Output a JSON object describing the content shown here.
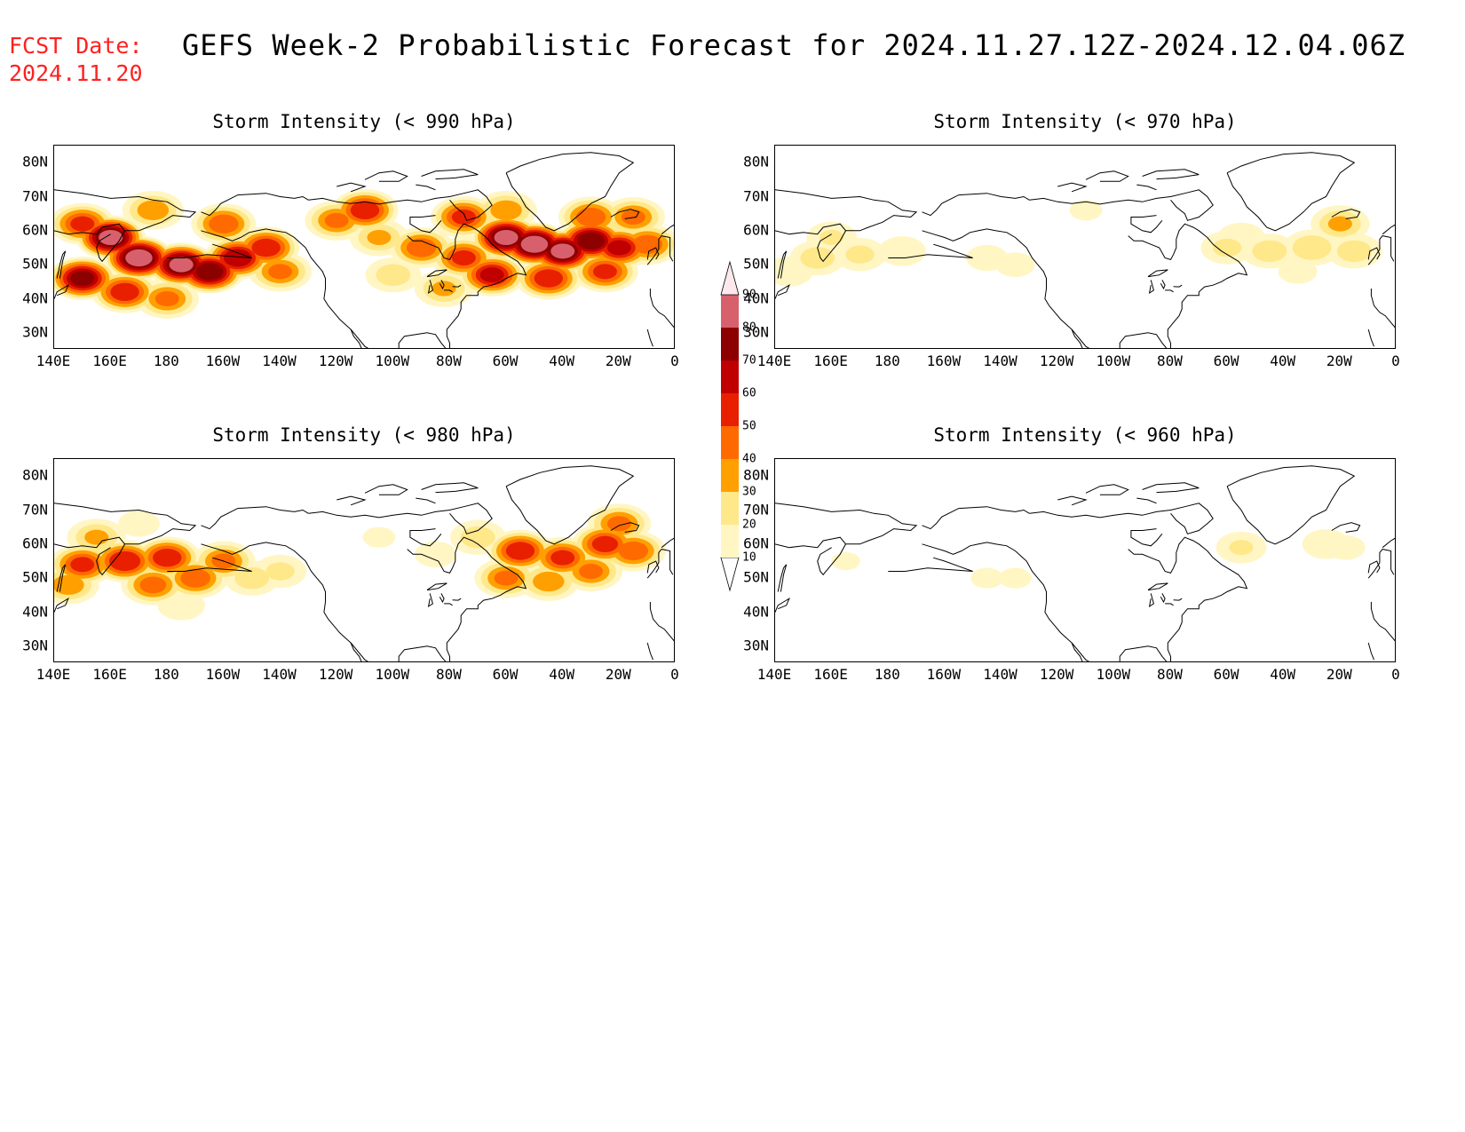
{
  "header": {
    "fcst_label": "FCST Date:",
    "fcst_date": "2024.11.20",
    "title": "GEFS Week-2 Probabilistic Forecast for 2024.11.27.12Z-2024.12.04.06Z"
  },
  "axes": {
    "x_ticks": [
      "140E",
      "160E",
      "180",
      "160W",
      "140W",
      "120W",
      "100W",
      "80W",
      "60W",
      "40W",
      "20W",
      "0"
    ],
    "y_ticks": [
      "80N",
      "70N",
      "60N",
      "50N",
      "40N",
      "30N"
    ],
    "lon_range_deg_east": [
      140,
      360
    ],
    "lat_range": [
      25,
      85
    ]
  },
  "colorbar": {
    "levels": [
      10,
      20,
      30,
      40,
      50,
      60,
      70,
      80,
      90
    ],
    "colors": [
      "#fff6c4",
      "#ffe88a",
      "#ffa000",
      "#ff6a00",
      "#e82000",
      "#c00000",
      "#8c0000",
      "#d8606c",
      "#f2b0b8",
      "#ffe8ec"
    ],
    "colors_note_index": "below 10 is white"
  },
  "chart_data": [
    {
      "type": "heatmap",
      "title": "Storm Intensity (< 990 hPa)",
      "blobs": [
        {
          "lon": 170,
          "lat": 52,
          "p": 85
        },
        {
          "lon": 160,
          "lat": 58,
          "p": 80
        },
        {
          "lon": 185,
          "lat": 50,
          "p": 80
        },
        {
          "lon": 195,
          "lat": 48,
          "p": 75
        },
        {
          "lon": 150,
          "lat": 46,
          "p": 70
        },
        {
          "lon": 205,
          "lat": 52,
          "p": 65
        },
        {
          "lon": 215,
          "lat": 55,
          "p": 55
        },
        {
          "lon": 165,
          "lat": 42,
          "p": 55
        },
        {
          "lon": 180,
          "lat": 40,
          "p": 40
        },
        {
          "lon": 150,
          "lat": 62,
          "p": 50
        },
        {
          "lon": 200,
          "lat": 62,
          "p": 45
        },
        {
          "lon": 175,
          "lat": 66,
          "p": 35
        },
        {
          "lon": 220,
          "lat": 48,
          "p": 40
        },
        {
          "lon": 240,
          "lat": 63,
          "p": 40
        },
        {
          "lon": 250,
          "lat": 66,
          "p": 55
        },
        {
          "lon": 255,
          "lat": 58,
          "p": 30
        },
        {
          "lon": 270,
          "lat": 55,
          "p": 45
        },
        {
          "lon": 285,
          "lat": 52,
          "p": 50
        },
        {
          "lon": 300,
          "lat": 58,
          "p": 80
        },
        {
          "lon": 310,
          "lat": 56,
          "p": 85
        },
        {
          "lon": 320,
          "lat": 54,
          "p": 80
        },
        {
          "lon": 330,
          "lat": 57,
          "p": 75
        },
        {
          "lon": 340,
          "lat": 55,
          "p": 60
        },
        {
          "lon": 295,
          "lat": 47,
          "p": 60
        },
        {
          "lon": 315,
          "lat": 46,
          "p": 55
        },
        {
          "lon": 335,
          "lat": 48,
          "p": 50
        },
        {
          "lon": 350,
          "lat": 56,
          "p": 45
        },
        {
          "lon": 285,
          "lat": 64,
          "p": 50
        },
        {
          "lon": 300,
          "lat": 66,
          "p": 35
        },
        {
          "lon": 330,
          "lat": 64,
          "p": 45
        },
        {
          "lon": 345,
          "lat": 64,
          "p": 40
        },
        {
          "lon": 278,
          "lat": 43,
          "p": 30
        },
        {
          "lon": 260,
          "lat": 47,
          "p": 25
        }
      ]
    },
    {
      "type": "heatmap",
      "title": "Storm Intensity (< 970 hPa)",
      "blobs": [
        {
          "lon": 155,
          "lat": 52,
          "p": 25
        },
        {
          "lon": 170,
          "lat": 53,
          "p": 22
        },
        {
          "lon": 185,
          "lat": 54,
          "p": 18
        },
        {
          "lon": 145,
          "lat": 48,
          "p": 18
        },
        {
          "lon": 160,
          "lat": 58,
          "p": 20
        },
        {
          "lon": 215,
          "lat": 52,
          "p": 15
        },
        {
          "lon": 225,
          "lat": 50,
          "p": 14
        },
        {
          "lon": 300,
          "lat": 55,
          "p": 22
        },
        {
          "lon": 315,
          "lat": 54,
          "p": 25
        },
        {
          "lon": 330,
          "lat": 55,
          "p": 28
        },
        {
          "lon": 345,
          "lat": 54,
          "p": 25
        },
        {
          "lon": 340,
          "lat": 62,
          "p": 30
        },
        {
          "lon": 305,
          "lat": 58,
          "p": 18
        },
        {
          "lon": 325,
          "lat": 48,
          "p": 14
        },
        {
          "lon": 250,
          "lat": 66,
          "p": 12
        }
      ]
    },
    {
      "type": "heatmap",
      "title": "Storm Intensity (< 980 hPa)",
      "blobs": [
        {
          "lon": 165,
          "lat": 55,
          "p": 58
        },
        {
          "lon": 150,
          "lat": 54,
          "p": 50
        },
        {
          "lon": 180,
          "lat": 56,
          "p": 55
        },
        {
          "lon": 190,
          "lat": 50,
          "p": 45
        },
        {
          "lon": 175,
          "lat": 48,
          "p": 42
        },
        {
          "lon": 200,
          "lat": 55,
          "p": 40
        },
        {
          "lon": 145,
          "lat": 48,
          "p": 35
        },
        {
          "lon": 155,
          "lat": 62,
          "p": 30
        },
        {
          "lon": 210,
          "lat": 50,
          "p": 25
        },
        {
          "lon": 220,
          "lat": 52,
          "p": 22
        },
        {
          "lon": 185,
          "lat": 42,
          "p": 18
        },
        {
          "lon": 170,
          "lat": 66,
          "p": 15
        },
        {
          "lon": 305,
          "lat": 58,
          "p": 55
        },
        {
          "lon": 320,
          "lat": 56,
          "p": 50
        },
        {
          "lon": 335,
          "lat": 60,
          "p": 52
        },
        {
          "lon": 345,
          "lat": 58,
          "p": 45
        },
        {
          "lon": 300,
          "lat": 50,
          "p": 40
        },
        {
          "lon": 315,
          "lat": 49,
          "p": 35
        },
        {
          "lon": 330,
          "lat": 52,
          "p": 40
        },
        {
          "lon": 340,
          "lat": 66,
          "p": 40
        },
        {
          "lon": 290,
          "lat": 62,
          "p": 25
        },
        {
          "lon": 275,
          "lat": 57,
          "p": 15
        },
        {
          "lon": 255,
          "lat": 62,
          "p": 12
        }
      ]
    },
    {
      "type": "heatmap",
      "title": "Storm Intensity (< 960 hPa)",
      "blobs": [
        {
          "lon": 305,
          "lat": 59,
          "p": 20
        },
        {
          "lon": 335,
          "lat": 60,
          "p": 18
        },
        {
          "lon": 342,
          "lat": 59,
          "p": 14
        },
        {
          "lon": 215,
          "lat": 50,
          "p": 12
        },
        {
          "lon": 225,
          "lat": 50,
          "p": 12
        },
        {
          "lon": 165,
          "lat": 55,
          "p": 11
        }
      ]
    }
  ]
}
